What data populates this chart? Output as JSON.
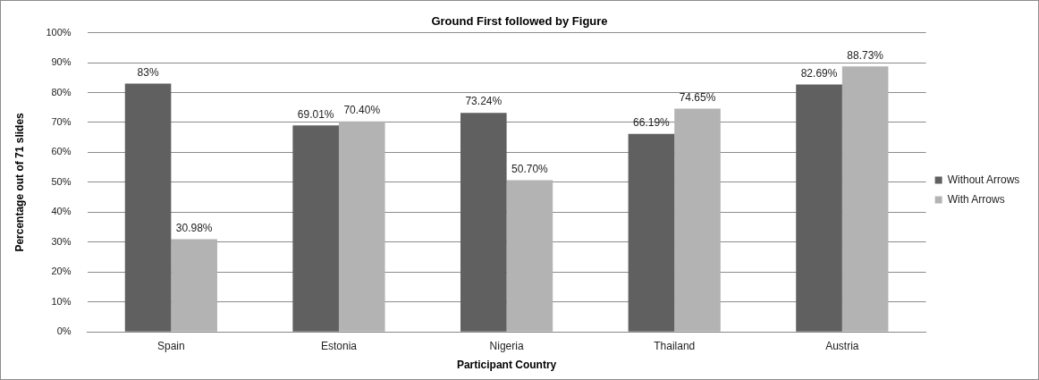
{
  "chart_data": {
    "type": "bar",
    "title": "Ground First followed by Figure",
    "xlabel": "Participant Country",
    "ylabel": "Percentage out of 71 slides",
    "categories": [
      "Spain",
      "Estonia",
      "Nigeria",
      "Thailand",
      "Austria"
    ],
    "series": [
      {
        "name": "Without Arrows",
        "color": "#606060",
        "values": [
          83,
          69.01,
          73.24,
          66.19,
          82.69
        ],
        "value_labels": [
          "83%",
          "69.01%",
          "73.24%",
          "66.19%",
          "82.69%"
        ]
      },
      {
        "name": "With Arrows",
        "color": "#b3b3b3",
        "values": [
          30.98,
          70.4,
          50.7,
          74.65,
          88.73
        ],
        "value_labels": [
          "30.98%",
          "70.40%",
          "50.70%",
          "74.65%",
          "88.73%"
        ]
      }
    ],
    "ylim": [
      0,
      100
    ],
    "yticks": [
      {
        "value": 0,
        "label": "0%"
      },
      {
        "value": 10,
        "label": "10%"
      },
      {
        "value": 20,
        "label": "20%"
      },
      {
        "value": 30,
        "label": "30%"
      },
      {
        "value": 40,
        "label": "40%"
      },
      {
        "value": 50,
        "label": "50%"
      },
      {
        "value": 60,
        "label": "60%"
      },
      {
        "value": 70,
        "label": "70%"
      },
      {
        "value": 80,
        "label": "80%"
      },
      {
        "value": 90,
        "label": "90%"
      },
      {
        "value": 100,
        "label": "100%"
      }
    ],
    "grid": "y",
    "legend": "right"
  }
}
